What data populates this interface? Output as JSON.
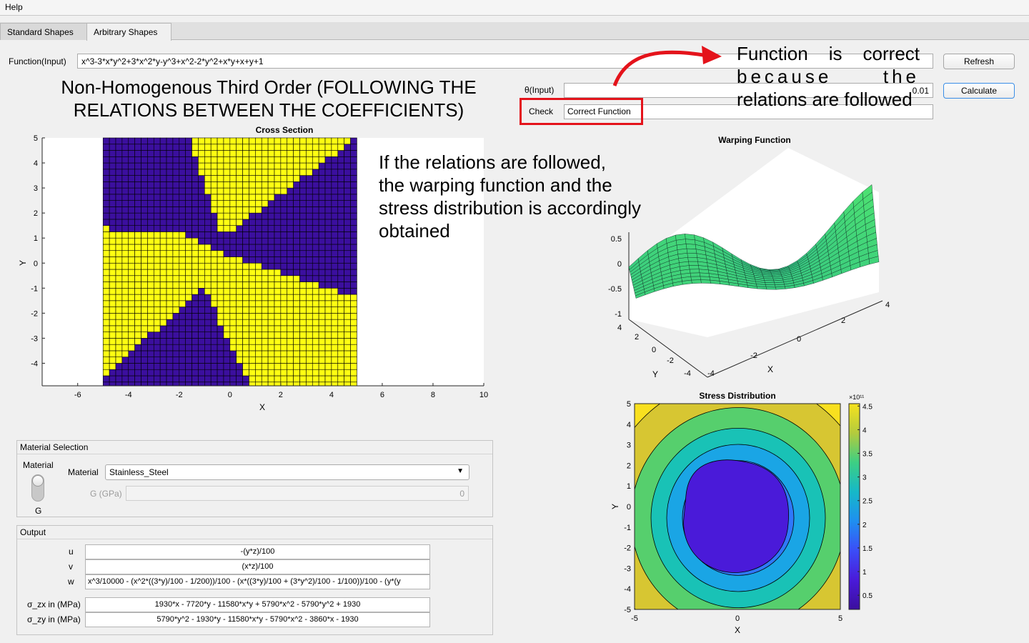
{
  "menu": {
    "help": "Help"
  },
  "tabs": [
    {
      "label": "Standard Shapes",
      "active": false
    },
    {
      "label": "Arbitrary Shapes",
      "active": true
    }
  ],
  "function_input": {
    "label": "Function(Input)",
    "value": "x^3-3*x*y^2+3*x^2*y-y^3+x^2-2*y^2+x*y+x+y+1"
  },
  "theta_input": {
    "label": "θ(Input)",
    "value": "0.01"
  },
  "check": {
    "label": "Check",
    "value": "Correct Function"
  },
  "buttons": {
    "refresh": "Refresh",
    "calculate": "Calculate"
  },
  "annotations": {
    "heading": [
      "Non-Homogenous Third Order (FOLLOWING THE",
      "RELATIONS BETWEEN THE COEFFICIENTS)"
    ],
    "function_note": [
      "Function is correct",
      "because the",
      "relations are followed"
    ],
    "warping_note": [
      "If the relations are followed,",
      "the warping function and the",
      "stress distribution is accordingly",
      "obtained"
    ]
  },
  "material_panel": {
    "title": "Material Selection",
    "switch_top_label": "Material",
    "switch_bottom_label": "G",
    "material_label": "Material",
    "material_value": "Stainless_Steel",
    "g_label": "G (GPa)",
    "g_value": "0"
  },
  "output_panel": {
    "title": "Output",
    "rows": [
      {
        "label": "u",
        "value": "-(y*z)/100"
      },
      {
        "label": "v",
        "value": "(x*z)/100"
      },
      {
        "label": "w",
        "value": "x^3/10000 - (x^2*((3*y)/100 - 1/200))/100 - (x*((3*y)/100 + (3*y^2)/100 - 1/100))/100 - (y*(y"
      },
      {
        "label": "σ_zx in (MPa)",
        "value": "1930*x - 7720*y - 11580*x*y + 5790*x^2 - 5790*y^2 + 1930"
      },
      {
        "label": "σ_zy in (MPa)",
        "value": "5790*y^2 - 1930*y - 11580*x*y - 5790*x^2 - 3860*x - 1930"
      }
    ]
  },
  "chart_data": [
    {
      "type": "heatmap",
      "title": "Cross Section",
      "xlabel": "X",
      "ylabel": "Y",
      "xlim": [
        -7.4,
        10
      ],
      "ylim": [
        -4.9,
        5
      ],
      "xticks": [
        "-6",
        "-4",
        "-2",
        "0",
        "2",
        "4",
        "6",
        "8",
        "10"
      ],
      "yticks": [
        "5",
        "4",
        "3",
        "2",
        "1",
        "0",
        "-1",
        "-2",
        "-3",
        "-4"
      ],
      "colors": {
        "inside": "#3b0f9e",
        "outside": "#ffff12",
        "grid": "#000000"
      },
      "grid_extent": {
        "x": [
          -5,
          5
        ],
        "y": [
          -5,
          5
        ],
        "cells": 40
      },
      "regions": [
        {
          "name": "top-yellow",
          "polygon": [
            [
              -1.6,
              5
            ],
            [
              5,
              5
            ],
            [
              -0.3,
              1
            ]
          ]
        },
        {
          "name": "left-yellow",
          "polygon": [
            [
              -5,
              1.4
            ],
            [
              -1.5,
              1.1
            ],
            [
              -0.6,
              0.5
            ],
            [
              -1.0,
              -1.0
            ],
            [
              -5,
              -4.5
            ]
          ]
        },
        {
          "name": "right-yellow",
          "polygon": [
            [
              -0.6,
              0.5
            ],
            [
              5,
              -1.4
            ],
            [
              5,
              -5
            ],
            [
              0.8,
              -5
            ],
            [
              -1.0,
              -1.0
            ]
          ]
        }
      ]
    },
    {
      "type": "surface",
      "title": "Warping Function",
      "xlabel": "X",
      "ylabel": "Y",
      "xticks": [
        "-4",
        "-2",
        "0",
        "2",
        "4"
      ],
      "yticks": [
        "-4",
        "-2",
        "0",
        "2",
        "4"
      ],
      "zticks": [
        "0.5",
        "0",
        "-0.5",
        "-1"
      ],
      "colors": {
        "surface": "#2fd6a0",
        "edge": "#0c2a22"
      }
    },
    {
      "type": "contour",
      "title": "Stress Distribution",
      "xlabel": "X",
      "ylabel": "Y",
      "xlim": [
        -5,
        5
      ],
      "ylim": [
        -5,
        5
      ],
      "xticks": [
        "-5",
        "0",
        "5"
      ],
      "yticks": [
        "5",
        "4",
        "3",
        "2",
        "1",
        "0",
        "-1",
        "-2",
        "-3",
        "-4",
        "-5"
      ],
      "colorbar": {
        "exponent": "×10¹¹",
        "ticks": [
          "4.5",
          "4",
          "3.5",
          "3",
          "2.5",
          "2",
          "1.5",
          "1",
          "0.5"
        ],
        "range": [
          0.2,
          4.55
        ]
      },
      "levels": [
        {
          "value": 0.4,
          "color": "#4a1ad9"
        },
        {
          "value": 0.9,
          "color": "#4d3af5"
        },
        {
          "value": 1.45,
          "color": "#2f78fb"
        },
        {
          "value": 2.0,
          "color": "#1aa5e5"
        },
        {
          "value": 2.6,
          "color": "#19c2b6"
        },
        {
          "value": 3.3,
          "color": "#56cf6d"
        },
        {
          "value": 4.1,
          "color": "#d7c632"
        },
        {
          "value": 4.5,
          "color": "#f9e01f"
        }
      ]
    }
  ]
}
